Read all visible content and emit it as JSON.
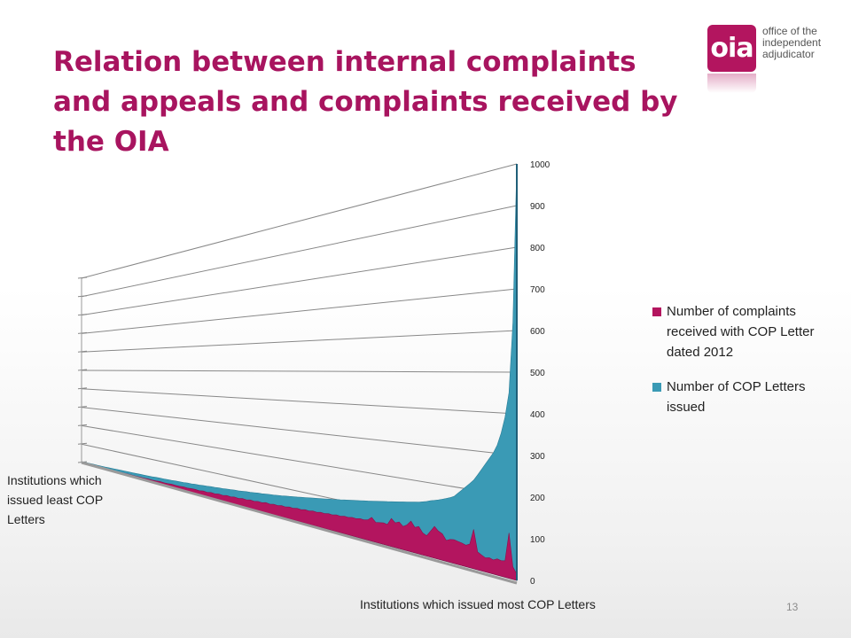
{
  "slide": {
    "title": "Relation between internal complaints and appeals and complaints received by the OIA",
    "page_number": "13"
  },
  "logo": {
    "mark": "oia",
    "text_lines": [
      "office of the",
      "independent",
      "adjudicator"
    ]
  },
  "colors": {
    "title": "#a8145f",
    "series_complaints": "#b3155f",
    "series_letters": "#3a9ab5",
    "gridline": "#888888"
  },
  "chart_data": {
    "type": "area",
    "view": "3d-perspective",
    "yticks": [
      "0",
      "100",
      "200",
      "300",
      "400",
      "500",
      "600",
      "700",
      "800",
      "900",
      "1000"
    ],
    "ylim": [
      0,
      1000
    ],
    "xlabel": "Institutions which issued most COP Letters",
    "xlabel_start": "Institutions which issued least COP Letters",
    "legend_position": "right",
    "series": [
      {
        "name": "Number of complaints received with COP Letter dated 2012",
        "values": [
          0,
          1,
          1,
          1,
          2,
          2,
          2,
          3,
          3,
          3,
          4,
          4,
          5,
          5,
          5,
          6,
          6,
          7,
          7,
          8,
          10,
          9,
          10,
          12,
          11,
          12,
          14,
          13,
          15,
          16,
          15,
          18,
          17,
          20,
          19,
          22,
          21,
          24,
          23,
          26,
          25,
          28,
          27,
          30,
          29,
          32,
          31,
          35,
          33,
          36,
          35,
          38,
          37,
          40,
          39,
          42,
          41,
          44,
          43,
          46,
          45,
          48,
          47,
          50,
          49,
          52,
          51,
          54,
          53,
          56,
          55,
          58,
          57,
          60,
          70,
          58,
          60,
          62,
          60,
          80,
          70,
          75,
          65,
          72,
          85,
          70,
          75,
          60,
          55,
          70,
          85,
          75,
          70,
          55,
          60,
          62,
          60,
          58,
          55,
          60,
          100,
          45,
          40,
          35,
          38,
          35,
          40,
          38,
          40,
          110,
          30,
          15
        ]
      },
      {
        "name": "Number of COP Letters issued",
        "values": [
          5,
          6,
          7,
          8,
          8,
          9,
          10,
          11,
          12,
          13,
          14,
          15,
          16,
          17,
          18,
          19,
          20,
          21,
          22,
          24,
          25,
          26,
          27,
          28,
          30,
          31,
          32,
          34,
          35,
          37,
          38,
          40,
          41,
          43,
          44,
          46,
          47,
          49,
          50,
          52,
          53,
          55,
          57,
          58,
          60,
          62,
          63,
          65,
          67,
          68,
          70,
          72,
          74,
          76,
          78,
          80,
          82,
          84,
          86,
          88,
          90,
          92,
          94,
          96,
          98,
          100,
          102,
          104,
          106,
          108,
          110,
          112,
          114,
          116,
          118,
          120,
          122,
          124,
          126,
          128,
          130,
          132,
          134,
          136,
          138,
          140,
          142,
          145,
          148,
          152,
          155,
          158,
          162,
          166,
          170,
          175,
          185,
          195,
          205,
          215,
          225,
          240,
          255,
          270,
          285,
          300,
          320,
          350,
          390,
          450,
          620,
          1000
        ]
      }
    ]
  },
  "labels": {
    "left_axis_note": "Institutions which issued least COP Letters",
    "bottom_axis_note": "Institutions which issued most COP Letters"
  }
}
